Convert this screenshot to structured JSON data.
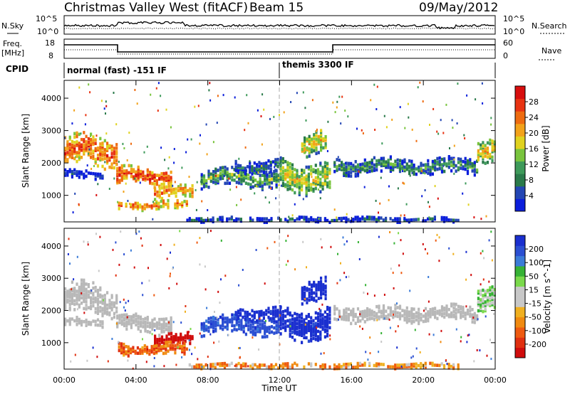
{
  "header": {
    "title": "Christmas Valley West (fitACF)",
    "beam": "Beam 15",
    "date": "09/May/2012"
  },
  "top_panels": {
    "nsky_label": "N.Sky",
    "nsearch_label": "N.Search",
    "noise_ticks": [
      "10^5",
      "10^0"
    ],
    "freq_label_1": "Freq.",
    "freq_label_2": "[MHz]",
    "freq_ticks": [
      "18",
      "8"
    ],
    "nave_label": "Nave",
    "nave_ticks": [
      "60",
      "0"
    ],
    "cpid_label": "CPID",
    "modes": [
      {
        "label": "normal (fast) -151 IF",
        "start_hour": 0
      },
      {
        "label": "themis 3300 IF",
        "start_hour": 12
      }
    ]
  },
  "colors": {
    "power_scale": [
      "#0b1edb",
      "#2346b4",
      "#2a7a4a",
      "#3e9a5a",
      "#79c43d",
      "#e0d21f",
      "#f2a21a",
      "#ee6b10",
      "#e83312",
      "#d80e0e"
    ],
    "velocity_scale": [
      "#1a2fcf",
      "#2b4fd2",
      "#3b7bd8",
      "#36b235",
      "#7ad94b",
      "#c8c8c8",
      "#c8c8c8",
      "#f0b020",
      "#f08a10",
      "#ee5a10",
      "#e03010",
      "#d00c0c"
    ],
    "ground_scatter": "#b8b8b8"
  },
  "chart_data": [
    {
      "type": "heatmap",
      "name": "Power [dB]",
      "xlabel": "Time UT",
      "ylabel": "Slant Range [km]",
      "xlim": [
        0,
        24
      ],
      "ylim": [
        180,
        4550
      ],
      "x_ticks": [
        "00:00",
        "04:00",
        "08:00",
        "12:00",
        "16:00",
        "20:00",
        "00:00"
      ],
      "y_ticks": [
        "1000",
        "2000",
        "3000",
        "4000"
      ],
      "colorbar_label": "Power [dB]",
      "colorbar_ticks": [
        "4",
        "8",
        "12",
        "16",
        "20",
        "24",
        "28"
      ],
      "scatter_regions": [
        {
          "t": [
            0.0,
            2.9
          ],
          "r_center": 2350,
          "r_width": 900,
          "value": 26
        },
        {
          "t": [
            0.0,
            2.2
          ],
          "r_center": 1650,
          "r_width": 250,
          "value": 6
        },
        {
          "t": [
            2.9,
            5.9
          ],
          "r_center": 1600,
          "r_width": 550,
          "value": 27
        },
        {
          "t": [
            5.0,
            7.2
          ],
          "r_center": 1100,
          "r_width": 350,
          "value": 24
        },
        {
          "t": [
            3.0,
            6.8
          ],
          "r_center": 700,
          "r_width": 250,
          "value": 25
        },
        {
          "t": [
            7.6,
            12.0
          ],
          "r_center": 1550,
          "r_width": 550,
          "value": 14
        },
        {
          "t": [
            9.5,
            12.0
          ],
          "r_center": 1900,
          "r_width": 350,
          "value": 10
        },
        {
          "t": [
            12.0,
            14.8
          ],
          "r_center": 1600,
          "r_width": 900,
          "value": 18
        },
        {
          "t": [
            13.2,
            14.6
          ],
          "r_center": 2600,
          "r_width": 700,
          "value": 20
        },
        {
          "t": [
            15.0,
            23.0
          ],
          "r_center": 1900,
          "r_width": 450,
          "value": 12
        },
        {
          "t": [
            23.0,
            24.0
          ],
          "r_center": 2400,
          "r_width": 700,
          "value": 20
        },
        {
          "t": [
            6.8,
            22.0
          ],
          "r_center": 260,
          "r_width": 140,
          "value": 8
        }
      ]
    },
    {
      "type": "heatmap",
      "name": "Velocity [m s^-1]",
      "xlabel": "Time UT",
      "ylabel": "Slant Range [km]",
      "xlim": [
        0,
        24
      ],
      "ylim": [
        180,
        4550
      ],
      "x_ticks": [
        "00:00",
        "04:00",
        "08:00",
        "12:00",
        "16:00",
        "20:00",
        "00:00"
      ],
      "y_ticks": [
        "1000",
        "2000",
        "3000",
        "4000"
      ],
      "colorbar_label": "Velocity [m s^-1]",
      "colorbar_ticks": [
        "200",
        "100",
        "50",
        "15",
        "-15",
        "-50",
        "-100",
        "-200"
      ],
      "scatter_regions": [
        {
          "t": [
            0.0,
            2.9
          ],
          "r_center": 2350,
          "r_width": 900,
          "value": 0,
          "ground": true
        },
        {
          "t": [
            0.0,
            2.2
          ],
          "r_center": 1650,
          "r_width": 250,
          "value": 0,
          "ground": true
        },
        {
          "t": [
            2.9,
            5.9
          ],
          "r_center": 1600,
          "r_width": 550,
          "value": 0,
          "ground": true
        },
        {
          "t": [
            5.0,
            7.2
          ],
          "r_center": 1100,
          "r_width": 350,
          "value": -200
        },
        {
          "t": [
            3.0,
            6.8
          ],
          "r_center": 800,
          "r_width": 350,
          "value": -60
        },
        {
          "t": [
            7.6,
            12.0
          ],
          "r_center": 1550,
          "r_width": 550,
          "value": 150
        },
        {
          "t": [
            9.5,
            12.0
          ],
          "r_center": 1900,
          "r_width": 350,
          "value": 200
        },
        {
          "t": [
            12.0,
            14.8
          ],
          "r_center": 1600,
          "r_width": 900,
          "value": 200
        },
        {
          "t": [
            13.2,
            14.6
          ],
          "r_center": 2600,
          "r_width": 700,
          "value": 220
        },
        {
          "t": [
            15.0,
            23.0
          ],
          "r_center": 1900,
          "r_width": 450,
          "value": 0,
          "ground": true
        },
        {
          "t": [
            23.0,
            24.0
          ],
          "r_center": 2400,
          "r_width": 700,
          "value": 40
        },
        {
          "t": [
            6.8,
            22.0
          ],
          "r_center": 300,
          "r_width": 160,
          "value": -40
        }
      ]
    }
  ]
}
